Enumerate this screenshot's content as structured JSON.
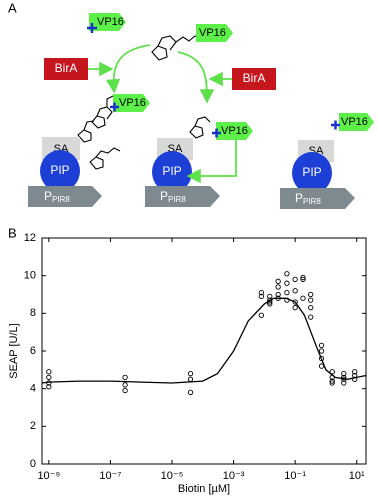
{
  "panel_a": {
    "label": "A",
    "vp16": [
      "VP16",
      "VP16",
      "VP16",
      "VP16",
      "VP16"
    ],
    "birA": [
      "BirA",
      "BirA"
    ],
    "sa": [
      "SA",
      "SA",
      "SA"
    ],
    "pip": [
      "PIP",
      "PIP",
      "PIP"
    ],
    "promoter": [
      {
        "main": "P",
        "sub": "PIR8"
      },
      {
        "main": "P",
        "sub": "PIR8"
      },
      {
        "main": "P",
        "sub": "PIR8"
      }
    ]
  },
  "panel_b_label": "B",
  "chart_data": {
    "type": "scatter",
    "x_label": "Biotin [µM]",
    "y_label": "SEAP [U/L]",
    "log_x": true,
    "marker_color": "#000000",
    "line_color": "#000000",
    "xlim": [
      6e-10,
      20
    ],
    "ylim": [
      0,
      12
    ],
    "xticks": [
      {
        "value": 1e-09,
        "label": "10⁻⁹"
      },
      {
        "value": 1e-07,
        "label": "10⁻⁷"
      },
      {
        "value": 1e-05,
        "label": "10⁻⁵"
      },
      {
        "value": 0.001,
        "label": "10⁻³"
      },
      {
        "value": 0.1,
        "label": "10⁻¹"
      },
      {
        "value": 10,
        "label": "10¹"
      }
    ],
    "yticks": [
      0,
      2,
      4,
      6,
      8,
      10,
      12
    ],
    "points": {
      "x": [
        1e-09,
        1e-09,
        1e-09,
        1e-09,
        3e-07,
        3e-07,
        3e-07,
        4e-05,
        4e-05,
        4e-05,
        0.008,
        0.008,
        0.008,
        0.015,
        0.015,
        0.015,
        0.015,
        0.028,
        0.028,
        0.028,
        0.028,
        0.054,
        0.054,
        0.054,
        0.054,
        0.1,
        0.1,
        0.1,
        0.1,
        0.18,
        0.18,
        0.18,
        0.32,
        0.32,
        0.32,
        0.32,
        0.72,
        0.72,
        0.72,
        0.72,
        1.6,
        1.6,
        1.6,
        1.6,
        3.8,
        3.8,
        3.8,
        3.8,
        8.6,
        8.6,
        8.6
      ],
      "y": [
        4.9,
        4.6,
        4.3,
        4.1,
        4.6,
        4.2,
        3.9,
        4.8,
        4.5,
        3.8,
        9.1,
        8.9,
        7.9,
        8.9,
        8.7,
        8.5,
        8.6,
        9.7,
        9.4,
        9.0,
        8.8,
        10.1,
        9.6,
        9.1,
        8.7,
        9.8,
        9.2,
        8.6,
        8.3,
        9.9,
        9.8,
        8.8,
        9.0,
        8.7,
        8.3,
        7.8,
        6.3,
        6.0,
        5.6,
        5.2,
        4.9,
        4.6,
        4.4,
        4.3,
        4.8,
        4.6,
        4.5,
        4.3,
        4.9,
        4.7,
        4.5
      ]
    },
    "curve": {
      "x": [
        6e-10,
        1e-09,
        1e-08,
        1e-07,
        1e-06,
        1e-05,
        0.0001,
        0.0003,
        0.001,
        0.003,
        0.01,
        0.02,
        0.05,
        0.1,
        0.2,
        0.5,
        1,
        2,
        5,
        10,
        20
      ],
      "y": [
        4.3,
        4.35,
        4.4,
        4.4,
        4.35,
        4.3,
        4.4,
        4.8,
        6.0,
        7.6,
        8.5,
        8.8,
        8.8,
        8.6,
        7.9,
        6.2,
        5.0,
        4.6,
        4.5,
        4.6,
        4.7
      ]
    }
  }
}
